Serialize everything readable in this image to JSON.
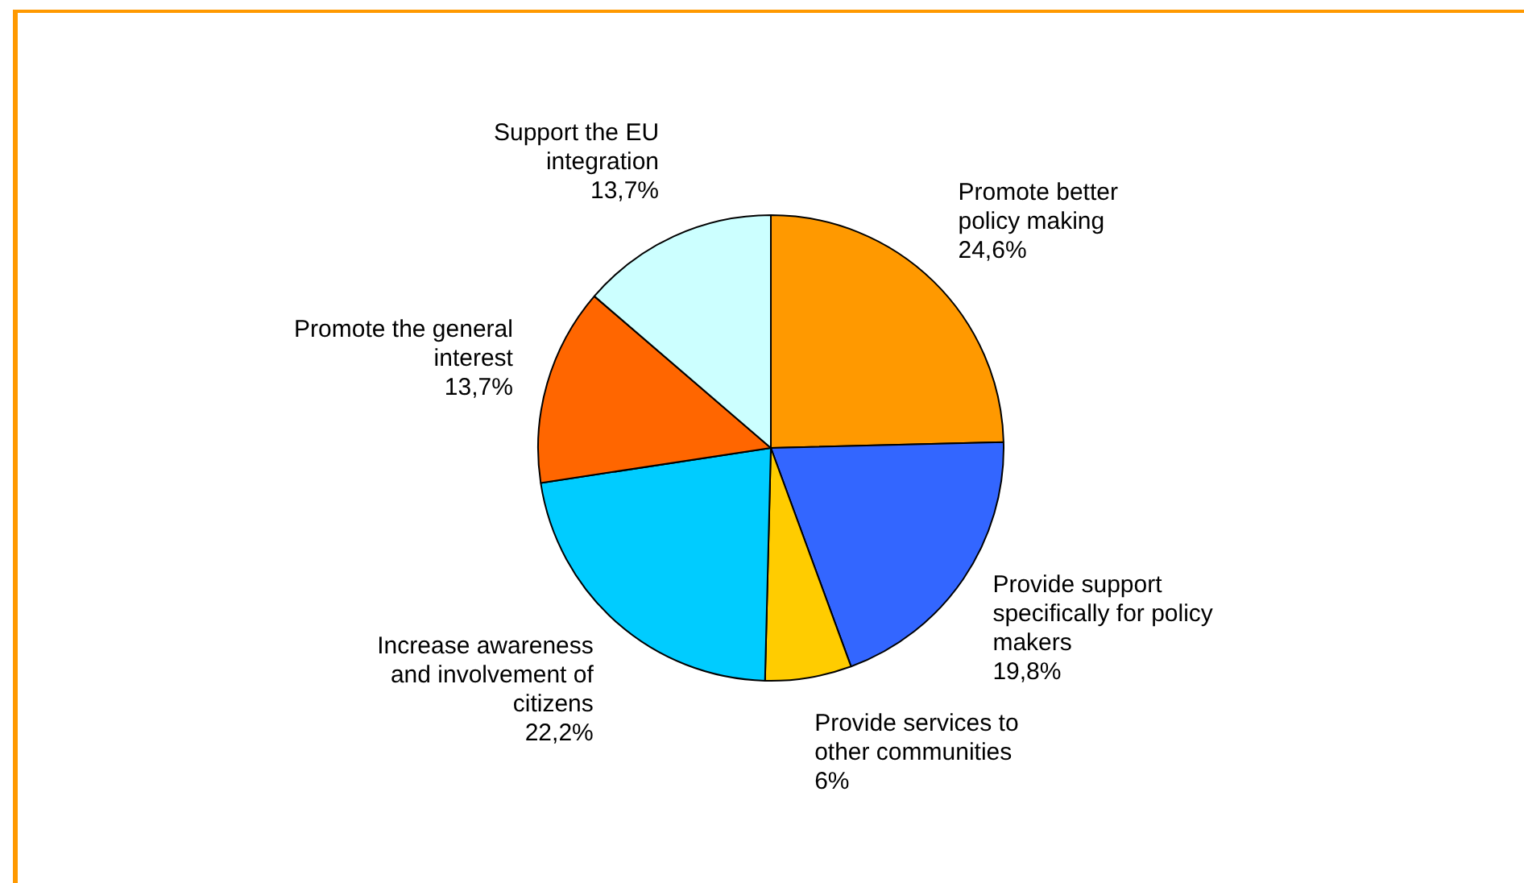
{
  "chart_data": {
    "type": "pie",
    "categories": [
      "Promote better policy making",
      "Provide support specifically for policy makers",
      "Provide services to other communities",
      "Increase awareness and involvement of citizens",
      "Promote the general interest",
      "Support the EU integration"
    ],
    "values": [
      24.6,
      19.8,
      6,
      22.2,
      13.7,
      13.7
    ],
    "value_labels": [
      "24,6%",
      "19,8%",
      "6%",
      "22,2%",
      "13,7%",
      "13,7%"
    ],
    "colors": [
      "#ff9900",
      "#3366ff",
      "#ffcc00",
      "#00ccff",
      "#ff6600",
      "#ccffff"
    ],
    "legend": false
  }
}
